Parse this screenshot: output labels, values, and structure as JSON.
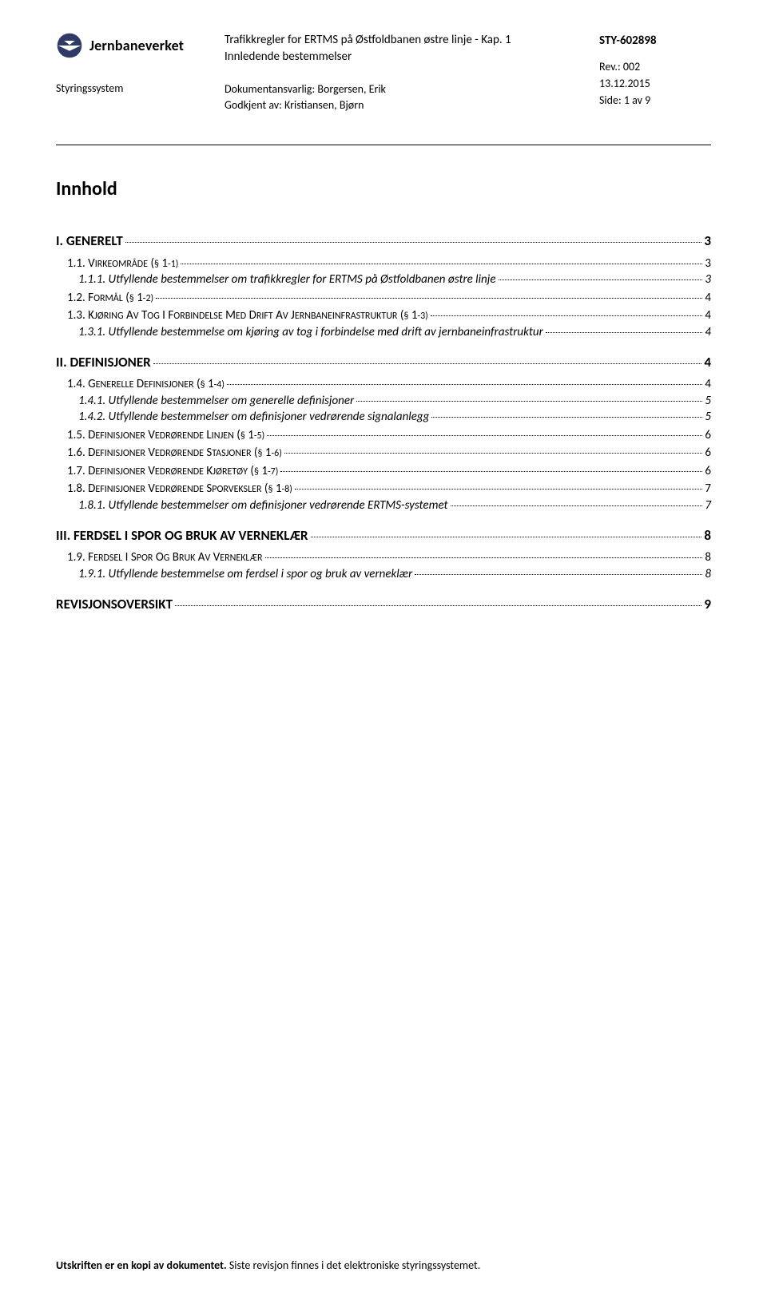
{
  "header": {
    "org": "Jernbaneverket",
    "sub_left": "Styringssystem",
    "title1": "Trafikkregler for ERTMS på Østfoldbanen østre linje - Kap. 1",
    "title2": "Innledende bestemmelser",
    "doc_resp_label": "Dokumentansvarlig:",
    "doc_resp": "Borgersen, Erik",
    "approved_label": "Godkjent av:",
    "approved": "Kristiansen, Bjørn",
    "sty": "STY-602898",
    "rev": "Rev.: 002",
    "date": "13.12.2015",
    "side": "Side: 1 av 9"
  },
  "toc_title": "Innhold",
  "toc": [
    {
      "level": 1,
      "label": "I. GENERELT",
      "page": "3"
    },
    {
      "level": 2,
      "num": "1.1.",
      "label": "VIRKEOMRÅDE (§ 1-1)",
      "page": "3"
    },
    {
      "level": 3,
      "num": "1.1.1.",
      "label": "Utfyllende bestemmelser om trafikkregler for ERTMS på Østfoldbanen østre linje",
      "page": "3"
    },
    {
      "level": 2,
      "num": "1.2.",
      "label": "FORMÅL (§ 1-2)",
      "page": "4"
    },
    {
      "level": 2,
      "num": "1.3.",
      "label": "KJØRING AV TOG I FORBINDELSE MED DRIFT AV JERNBANEINFRASTRUKTUR (§ 1-3)",
      "page": "4"
    },
    {
      "level": 3,
      "num": "1.3.1.",
      "label": "Utfyllende bestemmelse om kjøring av tog i forbindelse med drift av jernbaneinfrastruktur",
      "page": "4"
    },
    {
      "level": 1,
      "label": "II. DEFINISJONER",
      "page": "4"
    },
    {
      "level": 2,
      "num": "1.4.",
      "label": "GENERELLE DEFINISJONER (§ 1-4)",
      "page": "4"
    },
    {
      "level": 3,
      "num": "1.4.1.",
      "label": "Utfyllende bestemmelser om generelle definisjoner",
      "page": "5"
    },
    {
      "level": 3,
      "num": "1.4.2.",
      "label": "Utfyllende bestemmelser om definisjoner vedrørende signalanlegg",
      "page": "5"
    },
    {
      "level": 2,
      "num": "1.5.",
      "label": "DEFINISJONER VEDRØRENDE LINJEN (§ 1-5)",
      "page": "6"
    },
    {
      "level": 2,
      "num": "1.6.",
      "label": "DEFINISJONER VEDRØRENDE STASJONER (§ 1-6)",
      "page": "6"
    },
    {
      "level": 2,
      "num": "1.7.",
      "label": "DEFINISJONER VEDRØRENDE KJØRETØY (§ 1-7)",
      "page": "6"
    },
    {
      "level": 2,
      "num": "1.8.",
      "label": "DEFINISJONER VEDRØRENDE SPORVEKSLER (§ 1-8)",
      "page": "7"
    },
    {
      "level": 3,
      "num": "1.8.1.",
      "label": "Utfyllende bestemmelser om definisjoner vedrørende ERTMS-systemet",
      "page": "7"
    },
    {
      "level": 1,
      "label": "III. FERDSEL I SPOR OG BRUK AV VERNEKLÆR",
      "page": "8"
    },
    {
      "level": 2,
      "num": "1.9.",
      "label": "FERDSEL I SPOR OG BRUK AV VERNEKLÆR",
      "page": "8"
    },
    {
      "level": 3,
      "num": "1.9.1.",
      "label": "Utfyllende bestemmelse om ferdsel i spor og bruk av verneklær",
      "page": "8"
    },
    {
      "level": 1,
      "label": "REVISJONSOVERSIKT",
      "page": "9"
    }
  ],
  "footer": {
    "bold": "Utskriften er en kopi av dokumentet.",
    "rest": " Siste revisjon finnes i det elektroniske styringssystemet."
  }
}
